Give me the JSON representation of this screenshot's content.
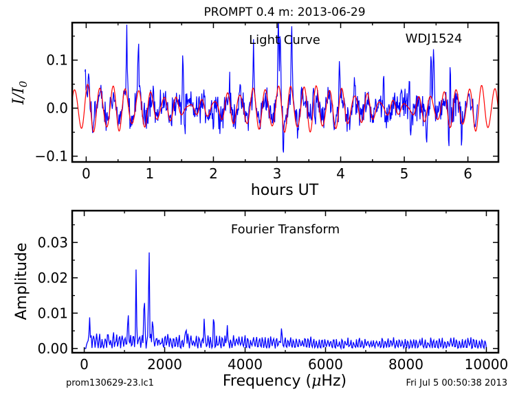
{
  "figure": {
    "title": "PROMPT 0.4 m:  2013-06-29",
    "footer_left": "prom130629-23.lc1",
    "footer_right": "Fri Jul  5 00:50:38 2013"
  },
  "chart_data": [
    {
      "type": "line",
      "annotation": "Light Curve",
      "object_name": "WDJ1524",
      "xlabel": "hours UT",
      "ylabel_main": "I",
      "ylabel_slash": "/",
      "ylabel_sub_base": "I",
      "ylabel_sub_index": "0",
      "xlim": [
        -0.22,
        6.48
      ],
      "ylim": [
        -0.112,
        0.178
      ],
      "xticks": [
        0,
        1,
        2,
        3,
        4,
        5,
        6
      ],
      "yticks": [
        -0.1,
        0.0,
        0.1
      ],
      "ytick_labels": [
        "−0.1",
        "0.0",
        "0.1"
      ],
      "xtick_labels": [
        "0",
        "1",
        "2",
        "3",
        "4",
        "5",
        "6"
      ],
      "series": [
        {
          "color": "#0000ff",
          "x_range": [
            -0.02,
            6.15
          ],
          "n_points": 760,
          "peaks": [
            {
              "x": -0.02,
              "y": 0.075
            },
            {
              "x": 0.04,
              "y": 0.06
            },
            {
              "x": 0.14,
              "y": 0.06
            },
            {
              "x": 0.64,
              "y": 0.14
            },
            {
              "x": 0.82,
              "y": 0.142
            },
            {
              "x": 1.05,
              "y": 0.05
            },
            {
              "x": 1.52,
              "y": 0.135
            },
            {
              "x": 2.25,
              "y": 0.055
            },
            {
              "x": 2.63,
              "y": 0.11
            },
            {
              "x": 3.02,
              "y": 0.15
            },
            {
              "x": 3.05,
              "y": 0.168
            },
            {
              "x": 3.23,
              "y": 0.155
            },
            {
              "x": 3.38,
              "y": 0.052
            },
            {
              "x": 3.57,
              "y": 0.065
            },
            {
              "x": 3.98,
              "y": 0.11
            },
            {
              "x": 4.22,
              "y": 0.055
            },
            {
              "x": 4.68,
              "y": 0.085
            },
            {
              "x": 4.95,
              "y": 0.065
            },
            {
              "x": 5.08,
              "y": 0.085
            },
            {
              "x": 5.42,
              "y": 0.12
            },
            {
              "x": 5.46,
              "y": 0.145
            },
            {
              "x": 5.72,
              "y": 0.095
            }
          ],
          "dips": [
            {
              "x": 0.1,
              "y": -0.055
            },
            {
              "x": 1.55,
              "y": -0.07
            },
            {
              "x": 2.0,
              "y": -0.062
            },
            {
              "x": 3.1,
              "y": -0.065
            },
            {
              "x": 3.6,
              "y": -0.078
            },
            {
              "x": 3.9,
              "y": -0.085
            },
            {
              "x": 4.7,
              "y": -0.07
            },
            {
              "x": 5.1,
              "y": -0.08
            },
            {
              "x": 5.35,
              "y": -0.1
            },
            {
              "x": 5.7,
              "y": -0.1
            },
            {
              "x": 5.9,
              "y": -0.08
            }
          ]
        },
        {
          "color": "#ff0000",
          "x_range": [
            -0.22,
            6.48
          ],
          "base_period_hours": 0.2,
          "beat_period_hours": 3.2,
          "amplitude_range": [
            0.008,
            0.045
          ]
        }
      ]
    },
    {
      "type": "line",
      "annotation": "Fourier Transform",
      "xlabel_prefix": "Frequency (",
      "xlabel_mu": "μ",
      "xlabel_suffix": "Hz)",
      "ylabel": "Amplitude",
      "xlim": [
        -300,
        10300
      ],
      "ylim": [
        -0.0012,
        0.039
      ],
      "xticks": [
        0,
        2000,
        4000,
        6000,
        8000,
        10000
      ],
      "yticks": [
        0.0,
        0.01,
        0.02,
        0.03
      ],
      "ytick_labels": [
        "0.00",
        "0.01",
        "0.02",
        "0.03"
      ],
      "xtick_labels": [
        "0",
        "2000",
        "4000",
        "6000",
        "8000",
        "10000"
      ],
      "series": [
        {
          "color": "#0000ff",
          "x_range": [
            0,
            10000
          ],
          "peaks": [
            {
              "x": 130,
              "y": 0.008
            },
            {
              "x": 1090,
              "y": 0.0095
            },
            {
              "x": 1290,
              "y": 0.02
            },
            {
              "x": 1490,
              "y": 0.017
            },
            {
              "x": 1610,
              "y": 0.0305
            },
            {
              "x": 1700,
              "y": 0.009
            },
            {
              "x": 2530,
              "y": 0.006
            },
            {
              "x": 2980,
              "y": 0.008
            },
            {
              "x": 3220,
              "y": 0.0085
            },
            {
              "x": 3550,
              "y": 0.005
            },
            {
              "x": 4900,
              "y": 0.0055
            }
          ],
          "noise_level_low": 0.0035,
          "noise_level_high": 0.0018
        }
      ]
    }
  ]
}
